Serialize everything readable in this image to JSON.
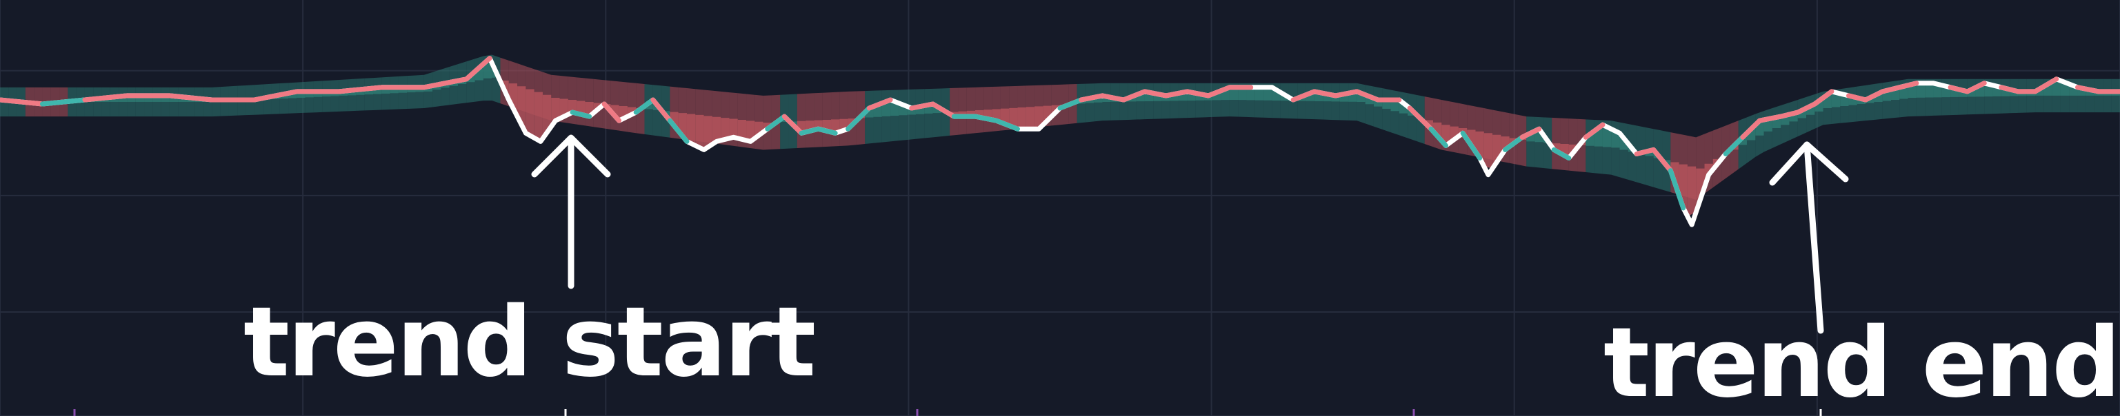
{
  "chart_data": {
    "type": "area",
    "title": "",
    "xlabel": "",
    "ylabel": "",
    "grid": true,
    "legend": "none",
    "xlim": [
      0,
      1000
    ],
    "ylim": [
      0,
      100
    ],
    "price_line": {
      "color": "#ffffff",
      "points": [
        [
          0,
          76
        ],
        [
          20,
          75
        ],
        [
          40,
          76
        ],
        [
          60,
          77
        ],
        [
          80,
          77
        ],
        [
          100,
          76
        ],
        [
          120,
          76
        ],
        [
          140,
          78
        ],
        [
          160,
          78
        ],
        [
          180,
          79
        ],
        [
          200,
          79
        ],
        [
          220,
          81
        ],
        [
          231,
          86
        ],
        [
          240,
          76
        ],
        [
          248,
          68
        ],
        [
          255,
          66
        ],
        [
          262,
          71
        ],
        [
          270,
          73
        ],
        [
          278,
          72
        ],
        [
          285,
          75
        ],
        [
          292,
          71
        ],
        [
          300,
          73
        ],
        [
          308,
          76
        ],
        [
          316,
          71
        ],
        [
          324,
          66
        ],
        [
          332,
          64
        ],
        [
          338,
          66
        ],
        [
          346,
          67
        ],
        [
          354,
          66
        ],
        [
          362,
          69
        ],
        [
          370,
          72
        ],
        [
          378,
          68
        ],
        [
          386,
          69
        ],
        [
          394,
          68
        ],
        [
          400,
          69
        ],
        [
          410,
          74
        ],
        [
          420,
          76
        ],
        [
          430,
          74
        ],
        [
          440,
          75
        ],
        [
          450,
          72
        ],
        [
          460,
          72
        ],
        [
          470,
          71
        ],
        [
          480,
          69
        ],
        [
          490,
          69
        ],
        [
          500,
          74
        ],
        [
          510,
          76
        ],
        [
          520,
          77
        ],
        [
          530,
          76
        ],
        [
          540,
          78
        ],
        [
          550,
          77
        ],
        [
          560,
          78
        ],
        [
          570,
          77
        ],
        [
          580,
          79
        ],
        [
          590,
          79
        ],
        [
          600,
          79
        ],
        [
          610,
          76
        ],
        [
          620,
          78
        ],
        [
          630,
          77
        ],
        [
          640,
          78
        ],
        [
          650,
          76
        ],
        [
          660,
          76
        ],
        [
          665,
          74
        ],
        [
          675,
          69
        ],
        [
          682,
          65
        ],
        [
          690,
          68
        ],
        [
          698,
          62
        ],
        [
          702,
          58
        ],
        [
          710,
          64
        ],
        [
          718,
          67
        ],
        [
          726,
          69
        ],
        [
          733,
          64
        ],
        [
          740,
          62
        ],
        [
          748,
          67
        ],
        [
          756,
          70
        ],
        [
          764,
          68
        ],
        [
          772,
          63
        ],
        [
          780,
          64
        ],
        [
          788,
          59
        ],
        [
          794,
          50
        ],
        [
          798,
          46
        ],
        [
          806,
          58
        ],
        [
          814,
          63
        ],
        [
          822,
          67
        ],
        [
          830,
          71
        ],
        [
          840,
          72
        ],
        [
          848,
          73
        ],
        [
          856,
          75
        ],
        [
          864,
          78
        ],
        [
          872,
          77
        ],
        [
          880,
          76
        ],
        [
          888,
          78
        ],
        [
          896,
          79
        ],
        [
          904,
          80
        ],
        [
          912,
          80
        ],
        [
          920,
          79
        ],
        [
          928,
          78
        ],
        [
          936,
          80
        ],
        [
          944,
          79
        ],
        [
          952,
          78
        ],
        [
          960,
          78
        ],
        [
          970,
          81
        ],
        [
          980,
          79
        ],
        [
          990,
          78
        ],
        [
          1000,
          78
        ]
      ]
    },
    "upper_band_values": [
      [
        0,
        79
      ],
      [
        100,
        79
      ],
      [
        200,
        82
      ],
      [
        231,
        87
      ],
      [
        260,
        82
      ],
      [
        300,
        80
      ],
      [
        360,
        77
      ],
      [
        400,
        78
      ],
      [
        460,
        79
      ],
      [
        520,
        80
      ],
      [
        580,
        80
      ],
      [
        640,
        80
      ],
      [
        680,
        76
      ],
      [
        720,
        72
      ],
      [
        760,
        71
      ],
      [
        800,
        67
      ],
      [
        830,
        73
      ],
      [
        860,
        78
      ],
      [
        900,
        81
      ],
      [
        960,
        81
      ],
      [
        1000,
        81
      ]
    ],
    "lower_band_values": [
      [
        0,
        72
      ],
      [
        100,
        72
      ],
      [
        200,
        74
      ],
      [
        231,
        76
      ],
      [
        260,
        71
      ],
      [
        300,
        68
      ],
      [
        360,
        64
      ],
      [
        400,
        65
      ],
      [
        460,
        68
      ],
      [
        520,
        71
      ],
      [
        580,
        72
      ],
      [
        640,
        71
      ],
      [
        680,
        64
      ],
      [
        720,
        60
      ],
      [
        760,
        58
      ],
      [
        800,
        52
      ],
      [
        830,
        63
      ],
      [
        860,
        70
      ],
      [
        900,
        72
      ],
      [
        960,
        73
      ],
      [
        1000,
        73
      ]
    ],
    "bullish_color": "#2e7a72",
    "bearish_color": "#b5545c",
    "line_bullish_color": "#3fb6ad",
    "line_bearish_color": "#f07a84",
    "annotations": [
      {
        "label": "trend start",
        "x": 270
      },
      {
        "label": "trend end",
        "x": 855
      }
    ]
  }
}
